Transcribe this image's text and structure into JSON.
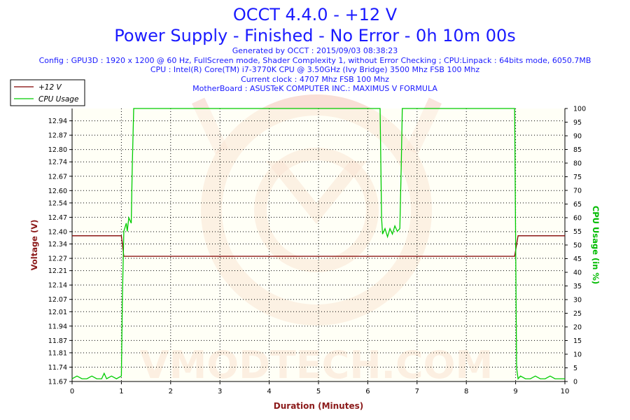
{
  "header": {
    "title": "OCCT 4.4.0 - +12 V",
    "subtitle": "Power Supply - Finished - No Error - 0h 10m 00s",
    "info_lines": [
      "Generated by OCCT : 2015/09/03 08:38:23",
      "Config : GPU3D : 1920 x 1200 @ 60 Hz, FullScreen mode, Shader Complexity 1, without Error Checking ; CPU:Linpack : 64bits mode, 6050.7MB",
      "CPU : Intel(R) Core(TM) i7-3770K CPU @ 3.50GHz (Ivy Bridge) 3500 Mhz FSB 100 Mhz",
      "Current clock : 4707 Mhz FSB 100 Mhz",
      "MotherBoard : ASUSTeK COMPUTER INC.: MAXIMUS V FORMULA"
    ]
  },
  "watermark": "VMODTECH.COM",
  "colors": {
    "background": "#ffffff",
    "plot_background": "#ffffee",
    "title": "#1a1aff",
    "voltage_series": "#800000",
    "cpu_series": "#00cc00",
    "axis_label_left": "#8b1a1a",
    "axis_label_bottom": "#8b1a1a",
    "axis_label_right": "#00bb00",
    "grid": "#000000",
    "watermark": "#f4c4b4"
  },
  "chart_data": {
    "type": "line",
    "xlabel": "Duration (Minutes)",
    "ylabel_left": "Voltage (V)",
    "ylabel_right": "CPU Usage (in %)",
    "xlim": [
      0,
      10
    ],
    "ylim_left": [
      11.67,
      13.0
    ],
    "ylim_right": [
      0,
      100
    ],
    "x_ticks": [
      0,
      1,
      2,
      3,
      4,
      5,
      6,
      7,
      8,
      9,
      10
    ],
    "x_tick_labels": [
      "0",
      "1",
      "2",
      "3",
      "4",
      "5",
      "6",
      "7",
      "8",
      "9",
      "10"
    ],
    "y_left_ticks": [
      11.67,
      11.74,
      11.81,
      11.87,
      11.94,
      12.01,
      12.07,
      12.14,
      12.21,
      12.27,
      12.34,
      12.4,
      12.47,
      12.54,
      12.6,
      12.67,
      12.74,
      12.8,
      12.87,
      12.94
    ],
    "y_left_tick_labels": [
      "11.67",
      "11.74",
      "11.81",
      "11.87",
      "11.94",
      "12.01",
      "12.07",
      "12.14",
      "12.21",
      "12.27",
      "12.34",
      "12.40",
      "12.47",
      "12.54",
      "12.60",
      "12.67",
      "12.74",
      "12.80",
      "12.87",
      "12.94"
    ],
    "y_right_ticks": [
      0,
      5,
      10,
      15,
      20,
      25,
      30,
      35,
      40,
      45,
      50,
      55,
      60,
      65,
      70,
      75,
      80,
      85,
      90,
      95,
      100
    ],
    "y_right_tick_labels": [
      "0",
      "5",
      "10",
      "15",
      "20",
      "25",
      "30",
      "35",
      "40",
      "45",
      "50",
      "55",
      "60",
      "65",
      "70",
      "75",
      "80",
      "85",
      "90",
      "95",
      "100"
    ],
    "grid": true,
    "legend_position": "top-left",
    "series": [
      {
        "name": "+12 V",
        "axis": "left",
        "x": [
          0,
          1.0,
          1.05,
          1.05,
          8.98,
          9.05,
          10
        ],
        "y": [
          12.38,
          12.38,
          12.28,
          12.28,
          12.28,
          12.38,
          12.38
        ]
      },
      {
        "name": "CPU Usage",
        "axis": "right",
        "x": [
          0,
          0.1,
          0.2,
          0.3,
          0.4,
          0.5,
          0.6,
          0.65,
          0.7,
          0.8,
          0.9,
          1.0,
          1.02,
          1.05,
          1.1,
          1.12,
          1.15,
          1.2,
          1.22,
          1.25,
          1.3,
          6.25,
          6.28,
          6.3,
          6.35,
          6.4,
          6.45,
          6.5,
          6.55,
          6.6,
          6.65,
          6.68,
          6.7,
          8.98,
          9.02,
          9.05,
          9.1,
          9.2,
          9.3,
          9.4,
          9.5,
          9.6,
          9.7,
          9.8,
          9.9,
          10
        ],
        "y": [
          1,
          2,
          1,
          1,
          2,
          1,
          1,
          3,
          1,
          2,
          1,
          2,
          30,
          55,
          58,
          55,
          60,
          58,
          78,
          100,
          100,
          100,
          60,
          54,
          56,
          53,
          56,
          54,
          57,
          55,
          56,
          80,
          100,
          100,
          5,
          1,
          2,
          1,
          1,
          2,
          1,
          1,
          2,
          1,
          1,
          1
        ]
      }
    ]
  }
}
